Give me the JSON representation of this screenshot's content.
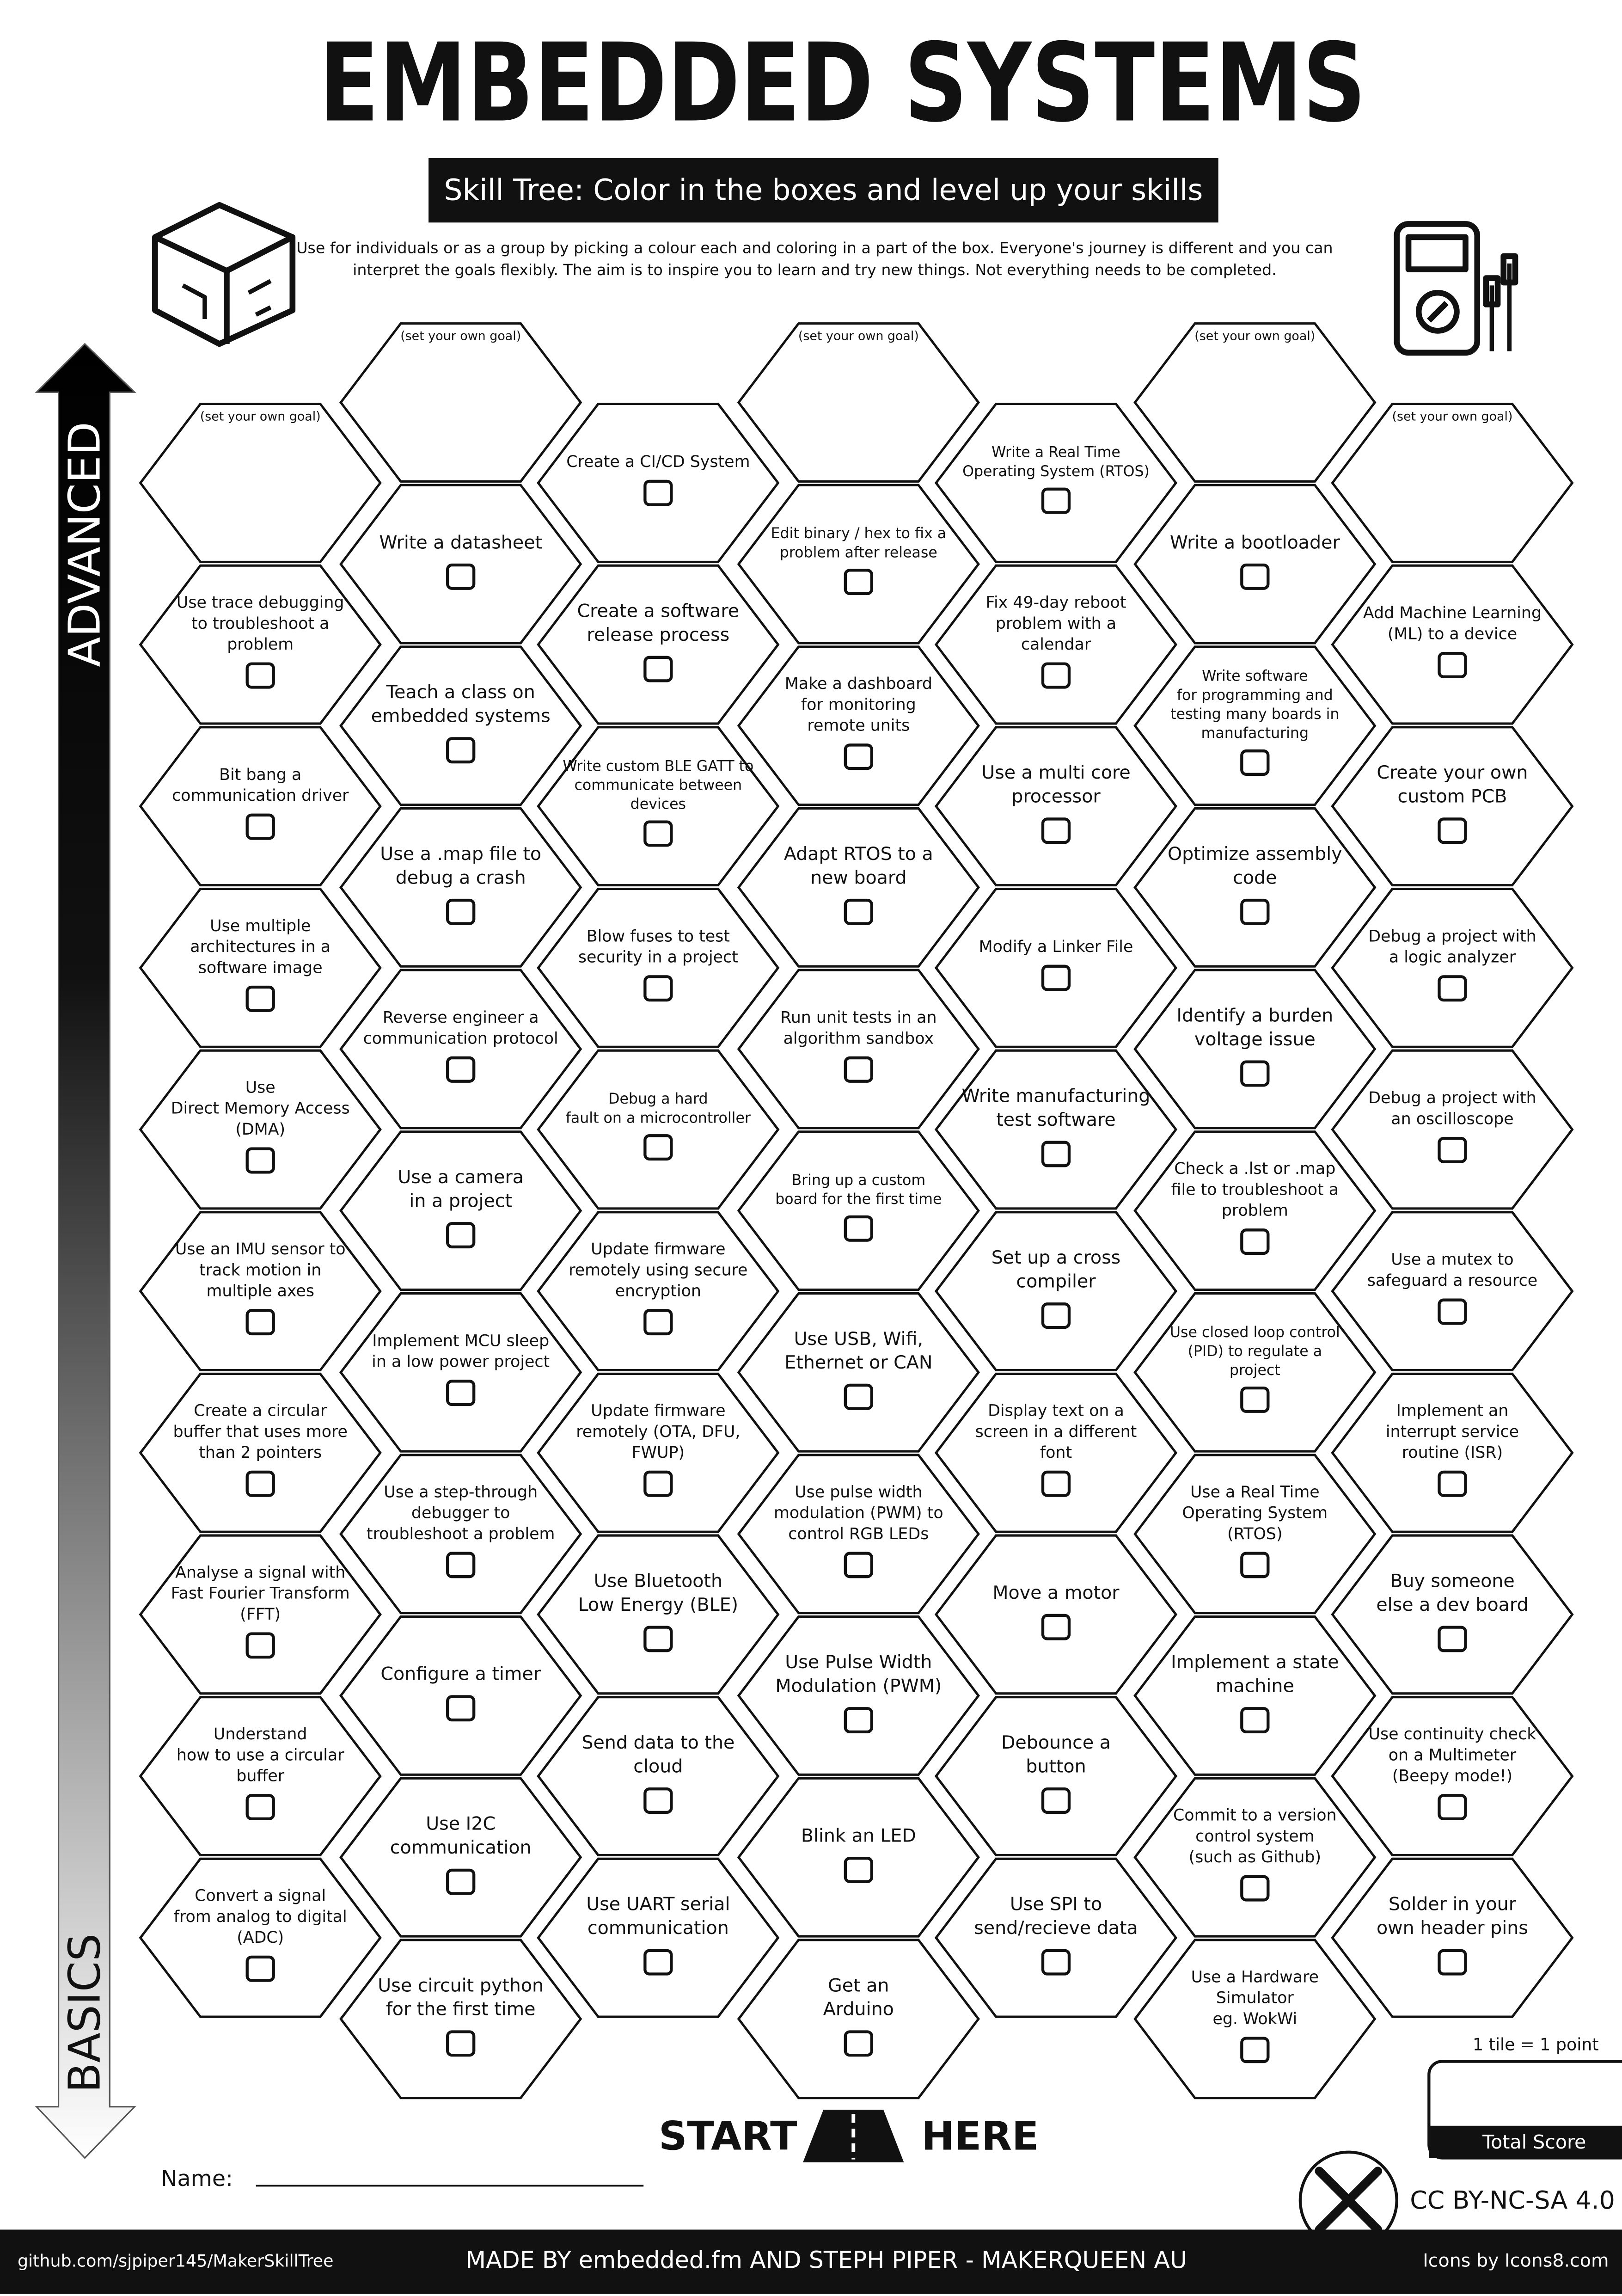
{
  "header": {
    "title": "EMBEDDED SYSTEMS",
    "subtitle": "Skill Tree:  Color in the boxes and level up your skills",
    "intro": [
      "Use for individuals or as a group by picking a colour each and coloring in a part of the box.  Everyone's journey is different and you can",
      "interpret the goals flexibly.  The aim is to inspire you to learn and try new things. Not everything needs to be completed."
    ]
  },
  "axis": {
    "top": "ADVANCED",
    "bottom": "BASICS"
  },
  "columns": [
    [
      {
        "kind": "goal",
        "lines": [
          "(set your own goal)"
        ]
      },
      {
        "lines": [
          "Use trace debugging",
          "to troubleshoot a",
          "problem"
        ]
      },
      {
        "lines": [
          "Bit bang a",
          "communication driver"
        ]
      },
      {
        "lines": [
          "Use multiple",
          "architectures in a",
          "software image"
        ]
      },
      {
        "lines": [
          "Use",
          "Direct Memory Access",
          "(DMA)"
        ]
      },
      {
        "lines": [
          "Use an IMU sensor to",
          "track motion in",
          "multiple axes"
        ]
      },
      {
        "lines": [
          "Create a circular",
          "buffer that uses more",
          "than 2 pointers"
        ]
      },
      {
        "lines": [
          "Analyse a signal with",
          "Fast Fourier Transform",
          "(FFT)"
        ]
      },
      {
        "lines": [
          "Understand",
          "how to use a circular",
          "buffer"
        ]
      },
      {
        "lines": [
          "Convert a signal",
          "from analog to digital",
          "(ADC)"
        ]
      }
    ],
    [
      {
        "kind": "goal",
        "lines": [
          "(set your own goal)"
        ]
      },
      {
        "lines": [
          "Write a datasheet"
        ]
      },
      {
        "lines": [
          "Teach a class on",
          "embedded systems"
        ]
      },
      {
        "lines": [
          "Use a .map file to",
          "debug a crash"
        ]
      },
      {
        "lines": [
          "Reverse engineer a",
          "communication protocol"
        ]
      },
      {
        "lines": [
          "Use a camera",
          "in a project"
        ]
      },
      {
        "lines": [
          "Implement MCU sleep",
          "in a low power project"
        ]
      },
      {
        "lines": [
          "Use a step-through",
          "debugger to",
          "troubleshoot a problem"
        ]
      },
      {
        "lines": [
          "Configure a timer"
        ]
      },
      {
        "lines": [
          "Use I2C",
          "communication"
        ]
      },
      {
        "lines": [
          "Use circuit python",
          "for the first time"
        ]
      }
    ],
    [
      {
        "lines": [
          "Create a CI/CD System"
        ]
      },
      {
        "lines": [
          "Create a software",
          "release process"
        ]
      },
      {
        "lines": [
          "Write custom BLE GATT to",
          "communicate between",
          "devices"
        ]
      },
      {
        "lines": [
          "Blow fuses to test",
          "security in a project"
        ]
      },
      {
        "lines": [
          "Debug a hard",
          "fault on a microcontroller"
        ]
      },
      {
        "lines": [
          "Update firmware",
          "remotely using secure",
          "encryption"
        ]
      },
      {
        "lines": [
          "Update firmware",
          "remotely (OTA, DFU,",
          "FWUP)"
        ]
      },
      {
        "lines": [
          "Use Bluetooth",
          "Low Energy (BLE)"
        ]
      },
      {
        "lines": [
          "Send data to the",
          "cloud"
        ]
      },
      {
        "lines": [
          "Use UART serial",
          "communication"
        ]
      }
    ],
    [
      {
        "kind": "goal",
        "lines": [
          "(set your own goal)"
        ]
      },
      {
        "lines": [
          "Edit binary / hex to fix a",
          "problem after release"
        ]
      },
      {
        "lines": [
          "Make a dashboard",
          "for monitoring",
          "remote units"
        ]
      },
      {
        "lines": [
          "Adapt RTOS to a",
          "new board"
        ]
      },
      {
        "lines": [
          "Run unit tests in an",
          "algorithm sandbox"
        ]
      },
      {
        "lines": [
          "Bring up a custom",
          "board for the first time"
        ]
      },
      {
        "lines": [
          "Use USB, Wifi,",
          "Ethernet or CAN"
        ]
      },
      {
        "lines": [
          "Use pulse width",
          "modulation (PWM) to",
          "control RGB LEDs"
        ]
      },
      {
        "lines": [
          "Use Pulse Width",
          "Modulation (PWM)"
        ]
      },
      {
        "lines": [
          "Blink an LED"
        ]
      },
      {
        "lines": [
          "Get an",
          "Arduino"
        ]
      }
    ],
    [
      {
        "lines": [
          "Write a Real Time",
          "Operating System (RTOS)"
        ]
      },
      {
        "lines": [
          "Fix 49-day reboot",
          "problem with a",
          "calendar"
        ]
      },
      {
        "lines": [
          "Use a multi core",
          "processor"
        ]
      },
      {
        "lines": [
          "Modify a Linker File"
        ]
      },
      {
        "lines": [
          "Write manufacturing",
          "test software"
        ]
      },
      {
        "lines": [
          "Set up a cross",
          "compiler"
        ]
      },
      {
        "lines": [
          "Display text on a",
          "screen in a different",
          "font"
        ]
      },
      {
        "lines": [
          "Move a motor"
        ]
      },
      {
        "lines": [
          "Debounce a",
          "button"
        ]
      },
      {
        "lines": [
          "Use SPI to",
          "send/recieve data"
        ]
      }
    ],
    [
      {
        "kind": "goal",
        "lines": [
          "(set your own goal)"
        ]
      },
      {
        "lines": [
          "Write a bootloader"
        ]
      },
      {
        "lines": [
          "Write software",
          "for programming and",
          "testing many boards in",
          "manufacturing"
        ]
      },
      {
        "lines": [
          "Optimize assembly",
          "code"
        ]
      },
      {
        "lines": [
          "Identify a burden",
          "voltage issue"
        ]
      },
      {
        "lines": [
          "Check a .lst or .map",
          "file to troubleshoot a",
          "problem"
        ]
      },
      {
        "lines": [
          "Use closed loop control",
          "(PID) to regulate a",
          "project"
        ]
      },
      {
        "lines": [
          "Use a Real Time",
          "Operating System",
          "(RTOS)"
        ]
      },
      {
        "lines": [
          "Implement a state",
          "machine"
        ]
      },
      {
        "lines": [
          "Commit to a version",
          "control system",
          "(such as Github)"
        ]
      },
      {
        "lines": [
          "Use a Hardware",
          "Simulator",
          "eg. WokWi"
        ]
      }
    ],
    [
      {
        "kind": "goal",
        "lines": [
          "(set your own goal)"
        ]
      },
      {
        "lines": [
          "Add Machine Learning",
          "(ML) to a device"
        ]
      },
      {
        "lines": [
          "Create your own",
          "custom PCB"
        ]
      },
      {
        "lines": [
          "Debug a project with",
          "a logic analyzer"
        ]
      },
      {
        "lines": [
          "Debug a project with",
          "an oscilloscope"
        ]
      },
      {
        "lines": [
          "Use a mutex to",
          "safeguard a resource"
        ]
      },
      {
        "lines": [
          "Implement an",
          "interrupt service",
          "routine (ISR)"
        ]
      },
      {
        "lines": [
          "Buy someone",
          "else a dev board"
        ]
      },
      {
        "lines": [
          "Use continuity check",
          "on a Multimeter",
          "(Beepy mode!)"
        ]
      },
      {
        "lines": [
          "Solder in your",
          "own header pins"
        ]
      }
    ]
  ],
  "start": {
    "left": "START",
    "right": "HERE"
  },
  "name_label": "Name:",
  "score": {
    "note": "1 tile = 1 point",
    "label": "Total Score"
  },
  "license": "CC BY-NC-SA 4.0",
  "footer": {
    "left": "github.com/sjpiper145/MakerSkillTree",
    "center": "MADE BY embedded.fm AND STEPH PIPER  -  MAKERQUEEN AU",
    "right": "Icons by Icons8.com"
  }
}
